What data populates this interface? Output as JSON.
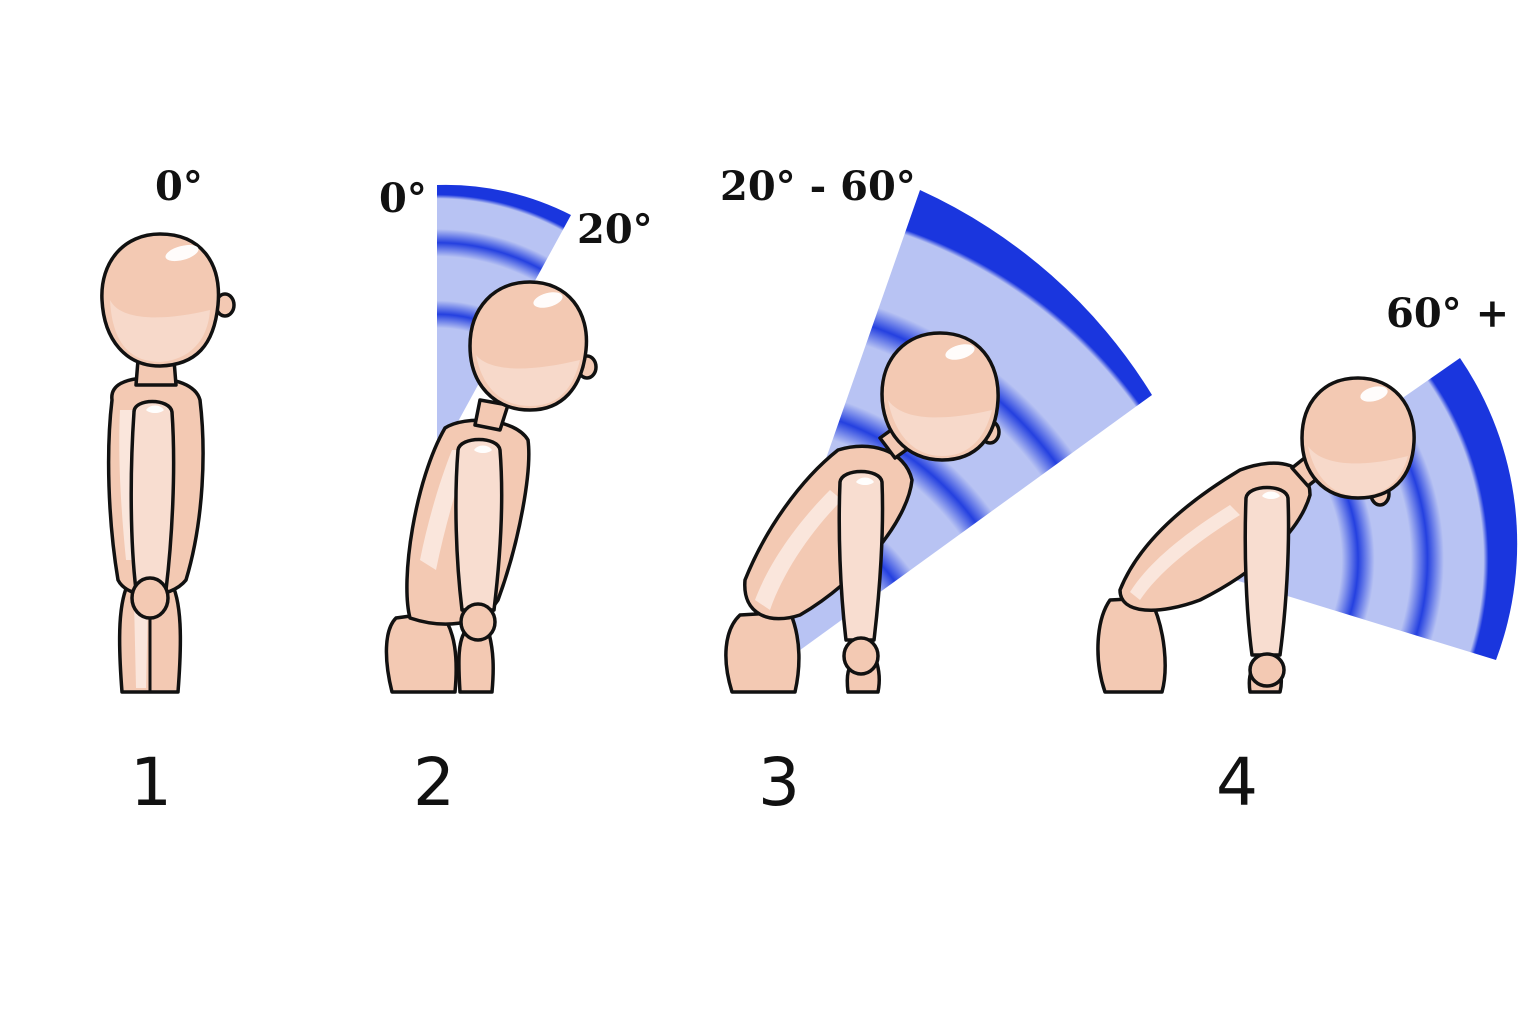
{
  "figures": [
    {
      "step": "1",
      "angle_label": "0°"
    },
    {
      "step": "2",
      "angle_label_start": "0°",
      "angle_label_end": "20°"
    },
    {
      "step": "3",
      "angle_label": "20° - 60°"
    },
    {
      "step": "4",
      "angle_label": "60° +"
    }
  ],
  "colors": {
    "sector_fill": "#b4c0f2",
    "sector_band": "#1e3ae0",
    "skin": "#f3c9b3",
    "outline": "#111111"
  }
}
